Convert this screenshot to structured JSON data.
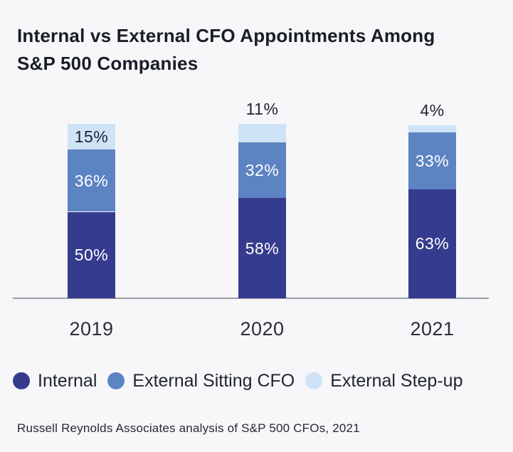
{
  "header": {
    "title_line1": "Internal vs External CFO Appointments Among",
    "title_line2": "S&P 500 Companies"
  },
  "chart_data": {
    "type": "bar",
    "stacked": true,
    "title": "Internal vs External CFO Appointments Among S&P 500 Companies",
    "categories": [
      "2019",
      "2020",
      "2021"
    ],
    "series": [
      {
        "name": "Internal",
        "color": "#353b8d",
        "label_color": "#ffffff",
        "values": [
          50,
          58,
          63
        ]
      },
      {
        "name": "External Sitting CFO",
        "color": "#5d84c2",
        "label_color": "#ffffff",
        "values": [
          36,
          32,
          33
        ]
      },
      {
        "name": "External Step-up",
        "color": "#cee3f5",
        "label_color": "#1f2430",
        "values": [
          15,
          11,
          4
        ]
      }
    ],
    "value_suffix": "%",
    "ylim": [
      0,
      101
    ],
    "grid": false,
    "xlabel": "",
    "ylabel": "",
    "legend_position": "bottom",
    "background_color": "#f7f7f9",
    "axis_color": "#9b9ca3"
  },
  "footer": {
    "source": "Russell Reynolds Associates analysis of S&P 500 CFOs, 2021"
  }
}
